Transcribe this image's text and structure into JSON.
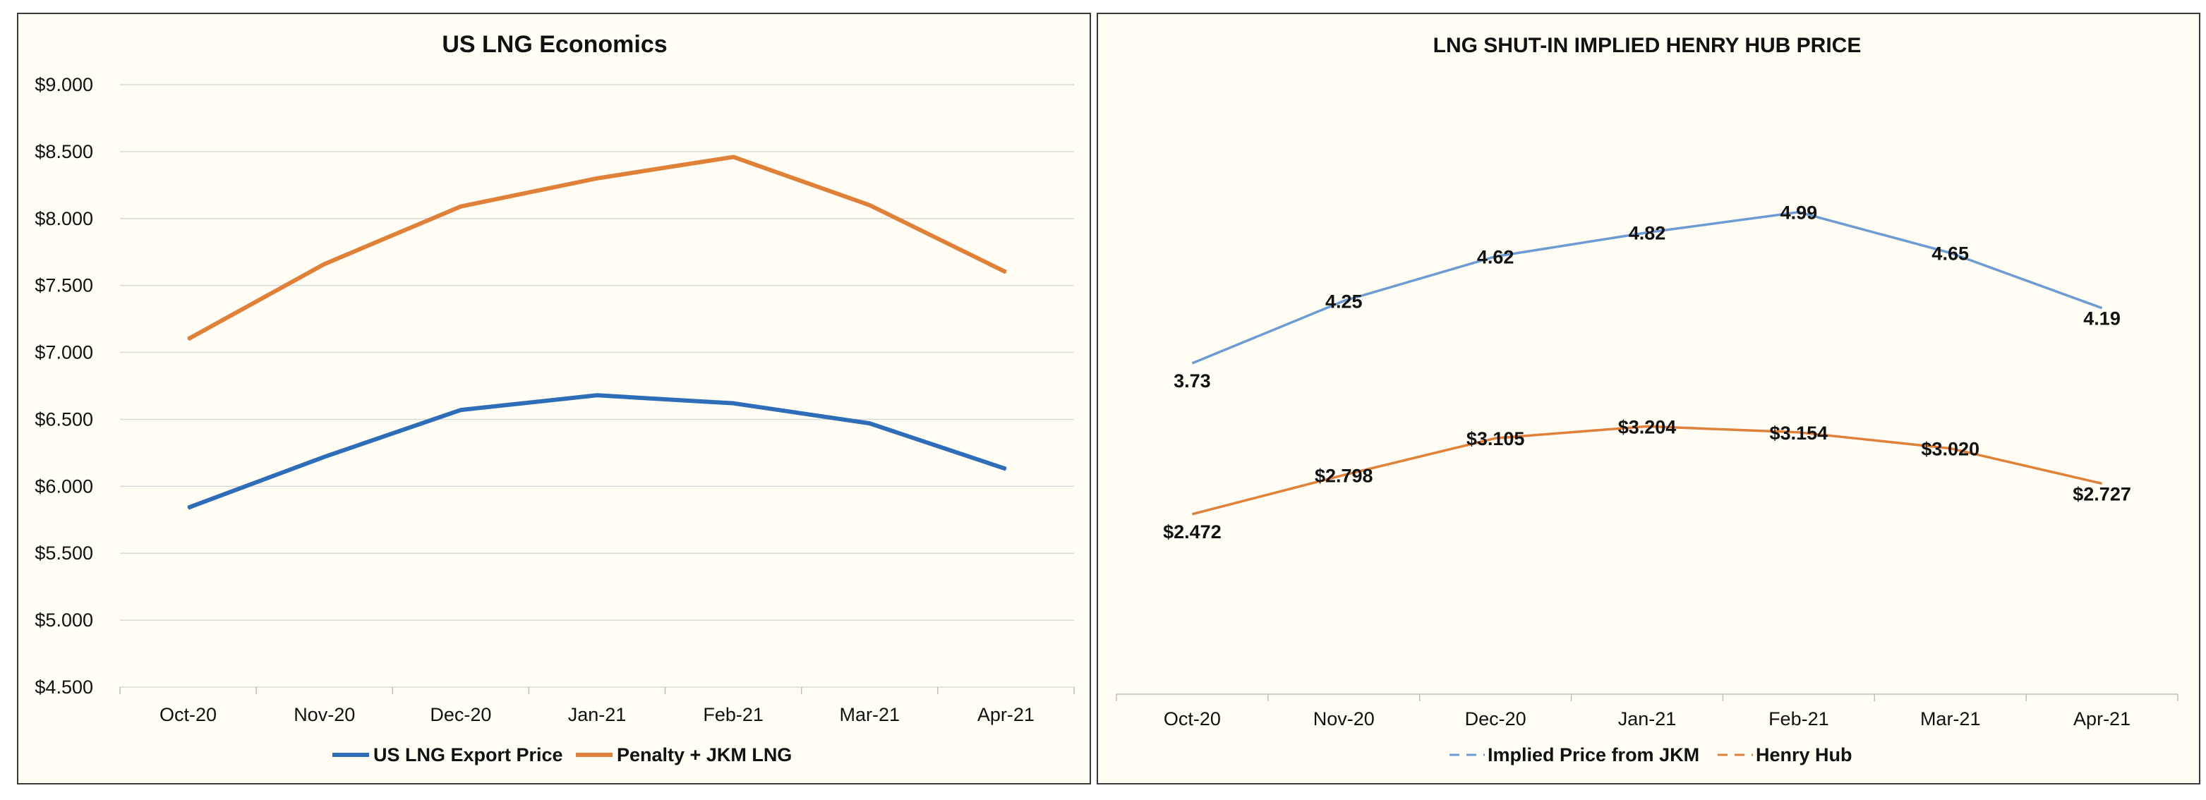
{
  "chart_data": [
    {
      "type": "line",
      "title": "US LNG Economics",
      "categories": [
        "Oct-20",
        "Nov-20",
        "Dec-20",
        "Jan-21",
        "Feb-21",
        "Mar-21",
        "Apr-21"
      ],
      "series": [
        {
          "name": "US LNG Export Price",
          "color": "#2e6db7",
          "values": [
            5.84,
            6.22,
            6.57,
            6.68,
            6.62,
            6.47,
            6.13
          ]
        },
        {
          "name": "Penalty + JKM LNG",
          "color": "#e0813a",
          "values": [
            7.1,
            7.66,
            8.09,
            8.3,
            8.46,
            8.1,
            7.6
          ]
        }
      ],
      "y_ticks": [
        "$9.000",
        "$8.500",
        "$8.000",
        "$7.500",
        "$7.000",
        "$6.500",
        "$6.000",
        "$5.500",
        "$5.000",
        "$4.500"
      ],
      "ylim": [
        4.5,
        9.0
      ],
      "grid": true,
      "legend_position": "bottom"
    },
    {
      "type": "line",
      "title": "LNG SHUT-IN IMPLIED HENRY HUB PRICE",
      "categories": [
        "Oct-20",
        "Nov-20",
        "Dec-20",
        "Jan-21",
        "Feb-21",
        "Mar-21",
        "Apr-21"
      ],
      "series": [
        {
          "name": "Implied Price from JKM",
          "color": "#6f9bd3",
          "values": [
            3.73,
            4.25,
            4.62,
            4.82,
            4.99,
            4.65,
            4.19
          ],
          "labels": [
            "3.73",
            "4.25",
            "4.62",
            "4.82",
            "4.99",
            "4.65",
            "4.19"
          ]
        },
        {
          "name": "Henry Hub",
          "color": "#e0813a",
          "values": [
            2.472,
            2.798,
            3.105,
            3.204,
            3.154,
            3.02,
            2.727
          ],
          "labels": [
            "$2.472",
            "$2.798",
            "$3.105",
            "$3.204",
            "$3.154",
            "$3.020",
            "$2.727"
          ]
        }
      ],
      "ylim": [
        1.7,
        5.7
      ],
      "grid": false,
      "legend_position": "bottom"
    }
  ]
}
